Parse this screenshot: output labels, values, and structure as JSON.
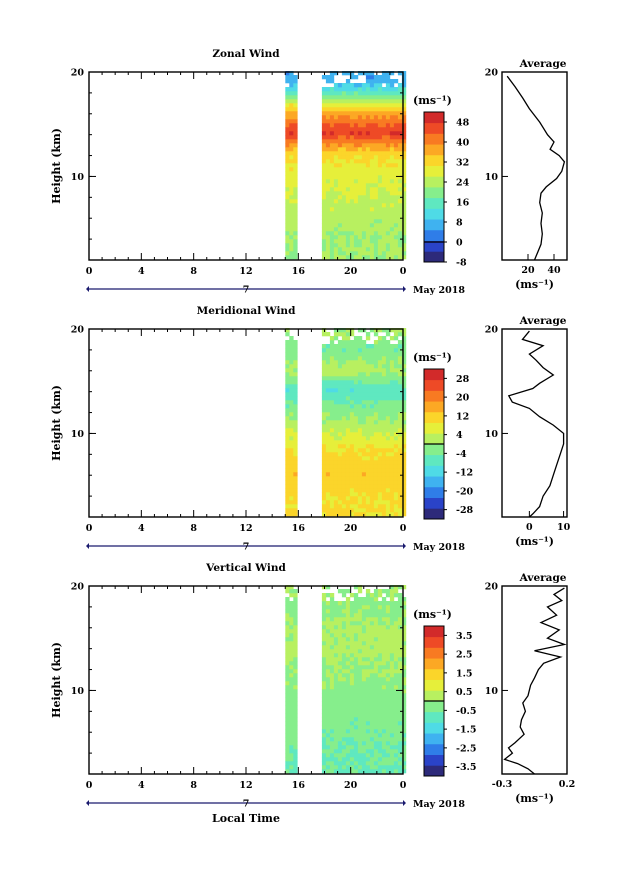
{
  "panels": [
    {
      "title": "Zonal Wind",
      "ylabel": "Height (km)",
      "ytick_labels": [
        "20",
        "10"
      ],
      "yticks": [
        20,
        10
      ],
      "ylim": [
        2,
        20
      ],
      "xtick_labels": [
        "0",
        "4",
        "8",
        "12",
        "16",
        "20",
        "0"
      ],
      "date_label": "7",
      "month_label": "May 2018",
      "colorbar": {
        "unit": "(ms⁻¹)",
        "labels": [
          "48",
          "40",
          "32",
          "24",
          "16",
          "8",
          "0",
          "-8"
        ],
        "range": [
          -8,
          52
        ],
        "colors": [
          "#2d2a7a",
          "#2a43c8",
          "#2f7de8",
          "#3fb2f0",
          "#4fdbe6",
          "#5fe8c0",
          "#86ee8c",
          "#b8f060",
          "#e6ef3a",
          "#fbd52a",
          "#fca824",
          "#f87a22",
          "#ee4a26",
          "#d22a2a"
        ]
      },
      "average": {
        "title": "Average",
        "xlabel": "(ms⁻¹)",
        "xtick_labels": [
          "20",
          "40"
        ],
        "xticks": [
          20,
          40
        ],
        "xlim": [
          0,
          50
        ],
        "ytick_labels": [
          "20",
          "10"
        ],
        "profile": [
          [
            19.6,
            4
          ],
          [
            18.6,
            10
          ],
          [
            17.5,
            16
          ],
          [
            16.5,
            21
          ],
          [
            15.2,
            29
          ],
          [
            14.0,
            35
          ],
          [
            13.3,
            40
          ],
          [
            12.6,
            37
          ],
          [
            12.0,
            44
          ],
          [
            11.4,
            48
          ],
          [
            10.5,
            46
          ],
          [
            9.8,
            42
          ],
          [
            9.0,
            34
          ],
          [
            8.4,
            30
          ],
          [
            7.5,
            29
          ],
          [
            6.5,
            31
          ],
          [
            5.5,
            30
          ],
          [
            4.5,
            31
          ],
          [
            3.5,
            30
          ],
          [
            2.6,
            27
          ],
          [
            2.0,
            25
          ]
        ]
      }
    },
    {
      "title": "Meridional Wind",
      "ylabel": "Height (km)",
      "ytick_labels": [
        "20",
        "10"
      ],
      "yticks": [
        20,
        10
      ],
      "ylim": [
        2,
        20
      ],
      "xtick_labels": [
        "0",
        "4",
        "8",
        "12",
        "16",
        "20",
        "0"
      ],
      "date_label": "7",
      "month_label": "May 2018",
      "colorbar": {
        "unit": "(ms⁻¹)",
        "labels": [
          "28",
          "20",
          "12",
          "4",
          "-4",
          "-12",
          "-20",
          "-28"
        ],
        "range": [
          -32,
          32
        ],
        "colors": [
          "#2d2a7a",
          "#2a43c8",
          "#2f7de8",
          "#3fb2f0",
          "#4fdbe6",
          "#5fe8c0",
          "#86ee8c",
          "#b8f060",
          "#e6ef3a",
          "#fbd52a",
          "#fca824",
          "#f87a22",
          "#ee4a26",
          "#d22a2a"
        ]
      },
      "average": {
        "title": "Average",
        "xlabel": "(ms⁻¹)",
        "xtick_labels": [
          "0",
          "10"
        ],
        "xticks": [
          0,
          10
        ],
        "xlim": [
          -8,
          11
        ],
        "ytick_labels": [
          "20",
          "10"
        ],
        "profile": [
          [
            19.8,
            0
          ],
          [
            19.0,
            -2
          ],
          [
            18.4,
            4
          ],
          [
            17.6,
            0
          ],
          [
            17.0,
            2
          ],
          [
            16.3,
            4
          ],
          [
            15.6,
            7
          ],
          [
            14.8,
            3
          ],
          [
            14.3,
            1
          ],
          [
            13.6,
            -6
          ],
          [
            13.0,
            -5
          ],
          [
            12.4,
            0
          ],
          [
            11.6,
            3
          ],
          [
            10.8,
            7
          ],
          [
            10.0,
            10
          ],
          [
            9.0,
            10
          ],
          [
            8.0,
            9
          ],
          [
            7.0,
            8
          ],
          [
            6.0,
            7
          ],
          [
            5.0,
            6
          ],
          [
            4.0,
            4
          ],
          [
            3.0,
            3
          ],
          [
            2.3,
            1
          ],
          [
            2.0,
            0
          ]
        ]
      }
    },
    {
      "title": "Vertical Wind",
      "ylabel": "Height (km)",
      "ytick_labels": [
        "20",
        "10"
      ],
      "yticks": [
        20,
        10
      ],
      "ylim": [
        2,
        20
      ],
      "xtick_labels": [
        "0",
        "4",
        "8",
        "12",
        "16",
        "20",
        "0"
      ],
      "date_label": "7",
      "month_label": "May 2018",
      "xlabel": "Local Time",
      "colorbar": {
        "unit": "(ms⁻¹)",
        "labels": [
          "3.5",
          "2.5",
          "1.5",
          "0.5",
          "-0.5",
          "-1.5",
          "-2.5",
          "-3.5"
        ],
        "range": [
          -4,
          4
        ],
        "colors": [
          "#2d2a7a",
          "#2a43c8",
          "#2f7de8",
          "#3fb2f0",
          "#4fdbe6",
          "#5fe8c0",
          "#86ee8c",
          "#b8f060",
          "#e6ef3a",
          "#fbd52a",
          "#fca824",
          "#f87a22",
          "#ee4a26",
          "#d22a2a"
        ]
      },
      "average": {
        "title": "Average",
        "xlabel": "(ms⁻¹)",
        "xtick_labels": [
          "-0.3",
          "0.2"
        ],
        "xticks": [
          -0.3,
          0.2
        ],
        "xlim": [
          -0.3,
          0.2
        ],
        "ytick_labels": [
          "20",
          "10"
        ],
        "profile": [
          [
            19.8,
            0.18
          ],
          [
            19.2,
            0.1
          ],
          [
            18.6,
            0.16
          ],
          [
            18.0,
            0.05
          ],
          [
            17.2,
            0.12
          ],
          [
            16.5,
            0.0
          ],
          [
            15.8,
            0.14
          ],
          [
            15.0,
            0.05
          ],
          [
            14.4,
            0.18
          ],
          [
            13.8,
            -0.05
          ],
          [
            13.2,
            0.15
          ],
          [
            12.6,
            0.02
          ],
          [
            12.0,
            -0.02
          ],
          [
            11.2,
            -0.05
          ],
          [
            10.5,
            -0.08
          ],
          [
            9.5,
            -0.1
          ],
          [
            8.8,
            -0.14
          ],
          [
            8.0,
            -0.12
          ],
          [
            7.2,
            -0.15
          ],
          [
            6.5,
            -0.16
          ],
          [
            5.8,
            -0.13
          ],
          [
            5.0,
            -0.2
          ],
          [
            4.5,
            -0.25
          ],
          [
            4.0,
            -0.22
          ],
          [
            3.4,
            -0.28
          ],
          [
            3.0,
            -0.18
          ],
          [
            2.5,
            -0.1
          ],
          [
            2.0,
            -0.05
          ]
        ]
      }
    }
  ],
  "chart_data": [
    {
      "type": "heatmap",
      "title": "Zonal Wind",
      "xlabel": "",
      "ylabel": "Height (km)",
      "x_unit": "local time (h)",
      "xlim": [
        0,
        24
      ],
      "ylim": [
        2,
        20
      ],
      "data_columns_hours": [
        [
          15.0,
          15.8
        ],
        [
          17.8,
          24.0
        ]
      ],
      "values_by_height": {
        "heights": [
          4,
          6,
          8,
          10,
          12,
          14,
          16,
          18,
          19
        ],
        "values": [
          22,
          24,
          26,
          28,
          32,
          48,
          36,
          14,
          6
        ]
      },
      "colorbar_range": [
        -8,
        52
      ],
      "colorbar_unit": "(ms⁻¹)"
    },
    {
      "type": "line",
      "title": "Average",
      "xlabel": "(ms⁻¹)",
      "ylabel": "",
      "x": [
        4,
        10,
        16,
        21,
        29,
        35,
        40,
        37,
        44,
        48,
        46,
        42,
        34,
        30,
        29,
        31,
        30,
        31,
        30,
        27,
        25
      ],
      "y": [
        19.6,
        18.6,
        17.5,
        16.5,
        15.2,
        14.0,
        13.3,
        12.6,
        12.0,
        11.4,
        10.5,
        9.8,
        9.0,
        8.4,
        7.5,
        6.5,
        5.5,
        4.5,
        3.5,
        2.6,
        2.0
      ]
    },
    {
      "type": "heatmap",
      "title": "Meridional Wind",
      "xlabel": "",
      "ylabel": "Height (km)",
      "x_unit": "local time (h)",
      "xlim": [
        0,
        24
      ],
      "ylim": [
        2,
        20
      ],
      "data_columns_hours": [
        [
          15.0,
          15.8
        ],
        [
          17.8,
          24.0
        ]
      ],
      "values_by_height": {
        "heights": [
          4,
          6,
          8,
          10,
          12,
          14,
          16,
          18,
          19
        ],
        "values": [
          10,
          12,
          10,
          4,
          -2,
          -8,
          2,
          -4,
          0
        ]
      },
      "colorbar_range": [
        -32,
        32
      ],
      "colorbar_unit": "(ms⁻¹)"
    },
    {
      "type": "line",
      "title": "Average",
      "xlabel": "(ms⁻¹)",
      "ylabel": "",
      "x": [
        0,
        -2,
        4,
        0,
        2,
        4,
        7,
        3,
        1,
        -6,
        -5,
        0,
        3,
        7,
        10,
        10,
        9,
        8,
        7,
        6,
        4,
        3,
        1,
        0
      ],
      "y": [
        19.8,
        19.0,
        18.4,
        17.6,
        17.0,
        16.3,
        15.6,
        14.8,
        14.3,
        13.6,
        13.0,
        12.4,
        11.6,
        10.8,
        10.0,
        9.0,
        8.0,
        7.0,
        6.0,
        5.0,
        4.0,
        3.0,
        2.3,
        2.0
      ]
    },
    {
      "type": "heatmap",
      "title": "Vertical Wind",
      "xlabel": "Local Time",
      "ylabel": "Height (km)",
      "x_unit": "local time (h)",
      "xlim": [
        0,
        24
      ],
      "ylim": [
        2,
        20
      ],
      "data_columns_hours": [
        [
          15.0,
          15.8
        ],
        [
          17.8,
          24.0
        ]
      ],
      "values_by_height": {
        "heights": [
          4,
          6,
          8,
          10,
          12,
          14,
          16,
          18,
          19
        ],
        "values": [
          -0.6,
          -0.4,
          -0.3,
          -0.2,
          0.0,
          0.2,
          0.1,
          -0.2,
          0.0
        ]
      },
      "colorbar_range": [
        -4,
        4
      ],
      "colorbar_unit": "(ms⁻¹)"
    },
    {
      "type": "line",
      "title": "Average",
      "xlabel": "(ms⁻¹)",
      "ylabel": "",
      "x": [
        0.18,
        0.1,
        0.16,
        0.05,
        0.12,
        0.0,
        0.14,
        0.05,
        0.18,
        -0.05,
        0.15,
        0.02,
        -0.02,
        -0.05,
        -0.08,
        -0.1,
        -0.14,
        -0.12,
        -0.15,
        -0.16,
        -0.13,
        -0.2,
        -0.25,
        -0.22,
        -0.28,
        -0.18,
        -0.1,
        -0.05
      ],
      "y": [
        19.8,
        19.2,
        18.6,
        18.0,
        17.2,
        16.5,
        15.8,
        15.0,
        14.4,
        13.8,
        13.2,
        12.6,
        12.0,
        11.2,
        10.5,
        9.5,
        8.8,
        8.0,
        7.2,
        6.5,
        5.8,
        5.0,
        4.5,
        4.0,
        3.4,
        3.0,
        2.5,
        2.0
      ]
    }
  ]
}
